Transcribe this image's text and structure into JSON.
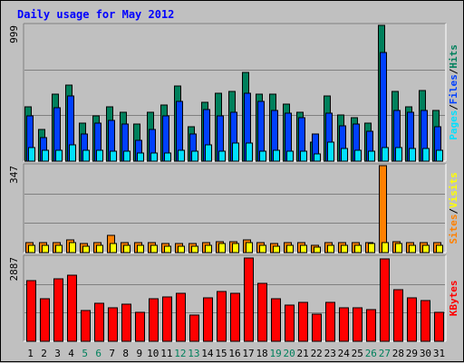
{
  "window": {
    "title": "Daily usage for May 2012"
  },
  "colors": {
    "background": "#c0c0c0",
    "hits": "#00805c",
    "files": "#0040ff",
    "pages": "#00e0ff",
    "visits": "#ffff00",
    "sites": "#ff8000",
    "kbytes": "#ff0000"
  },
  "chart_data": [
    {
      "type": "bar",
      "panel": "hits-files-pages",
      "ymax_label": "999",
      "ylim": [
        0,
        999
      ],
      "legend": [
        "Pages",
        "/",
        "Files",
        "/",
        "Hits"
      ],
      "categories": [
        "1",
        "2",
        "3",
        "4",
        "5",
        "6",
        "7",
        "8",
        "9",
        "10",
        "11",
        "12",
        "13",
        "14",
        "15",
        "16",
        "17",
        "18",
        "19",
        "20",
        "21",
        "22",
        "23",
        "24",
        "25",
        "26",
        "27",
        "28",
        "29",
        "30",
        "31"
      ],
      "weekend_days": [
        "5",
        "6",
        "12",
        "13",
        "19",
        "20",
        "26",
        "27"
      ],
      "series": [
        {
          "name": "Hits",
          "values": [
            400,
            230,
            490,
            560,
            280,
            330,
            400,
            360,
            270,
            360,
            410,
            550,
            250,
            430,
            500,
            510,
            650,
            490,
            490,
            420,
            360,
            140,
            480,
            340,
            320,
            280,
            1000,
            510,
            400,
            520,
            370
          ]
        },
        {
          "name": "Files",
          "values": [
            330,
            170,
            390,
            480,
            200,
            280,
            300,
            270,
            150,
            230,
            330,
            440,
            200,
            380,
            330,
            360,
            500,
            440,
            370,
            350,
            320,
            200,
            350,
            260,
            270,
            220,
            800,
            370,
            360,
            370,
            250
          ]
        },
        {
          "name": "Pages",
          "values": [
            100,
            80,
            80,
            120,
            80,
            80,
            70,
            70,
            60,
            60,
            60,
            80,
            70,
            120,
            70,
            130,
            130,
            70,
            80,
            70,
            70,
            50,
            140,
            90,
            80,
            70,
            100,
            100,
            90,
            90,
            80
          ]
        }
      ]
    },
    {
      "type": "bar",
      "panel": "visits-sites",
      "ymax_label": "347",
      "ylim": [
        0,
        347
      ],
      "legend": [
        "Sites",
        "/",
        "Visits"
      ],
      "categories": [
        "1",
        "2",
        "3",
        "4",
        "5",
        "6",
        "7",
        "8",
        "9",
        "10",
        "11",
        "12",
        "13",
        "14",
        "15",
        "16",
        "17",
        "18",
        "19",
        "20",
        "21",
        "22",
        "23",
        "24",
        "25",
        "26",
        "27",
        "28",
        "29",
        "30",
        "31"
      ],
      "series": [
        {
          "name": "Sites",
          "values": [
            40,
            40,
            40,
            50,
            35,
            40,
            70,
            40,
            40,
            40,
            35,
            35,
            35,
            40,
            45,
            45,
            50,
            40,
            35,
            40,
            40,
            30,
            40,
            40,
            40,
            40,
            347,
            45,
            40,
            40,
            40
          ]
        },
        {
          "name": "Visits",
          "values": [
            30,
            30,
            30,
            40,
            25,
            30,
            35,
            30,
            30,
            30,
            25,
            25,
            25,
            30,
            35,
            35,
            40,
            30,
            25,
            30,
            30,
            20,
            30,
            30,
            30,
            35,
            40,
            35,
            30,
            30,
            30
          ]
        }
      ]
    },
    {
      "type": "bar",
      "panel": "kbytes",
      "ymax_label": "2887",
      "ylim": [
        0,
        2887
      ],
      "legend": [
        "KBytes"
      ],
      "categories": [
        "1",
        "2",
        "3",
        "4",
        "5",
        "6",
        "7",
        "8",
        "9",
        "10",
        "11",
        "12",
        "13",
        "14",
        "15",
        "16",
        "17",
        "18",
        "19",
        "20",
        "21",
        "22",
        "23",
        "24",
        "25",
        "26",
        "27",
        "28",
        "29",
        "30",
        "31"
      ],
      "series": [
        {
          "name": "KBytes",
          "values": [
            2080,
            1450,
            2130,
            2270,
            1050,
            1290,
            1160,
            1260,
            980,
            1460,
            1520,
            1660,
            910,
            1480,
            1700,
            1660,
            2870,
            1980,
            1470,
            1240,
            1320,
            930,
            1330,
            1140,
            1140,
            1080,
            2820,
            1760,
            1490,
            1400,
            1000
          ]
        }
      ]
    }
  ]
}
